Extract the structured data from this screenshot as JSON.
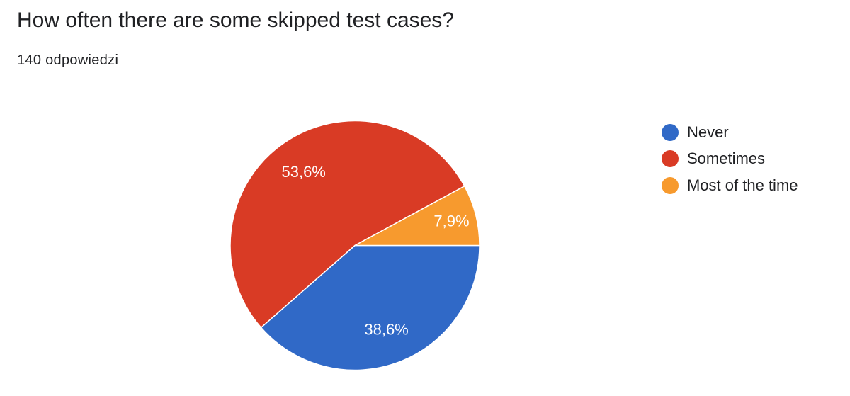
{
  "header": {
    "question": "How often there are some skipped test cases?",
    "responses": "140 odpowiedzi"
  },
  "chart_data": {
    "type": "pie",
    "legend_position": "right",
    "slices": [
      {
        "label": "Never",
        "value": 38.6,
        "display": "38,6%",
        "color": "#3069c7"
      },
      {
        "label": "Sometimes",
        "value": 53.6,
        "display": "53,6%",
        "color": "#d93b25"
      },
      {
        "label": "Most of the time",
        "value": 7.9,
        "display": "7,9%",
        "color": "#f79a2e"
      }
    ]
  }
}
